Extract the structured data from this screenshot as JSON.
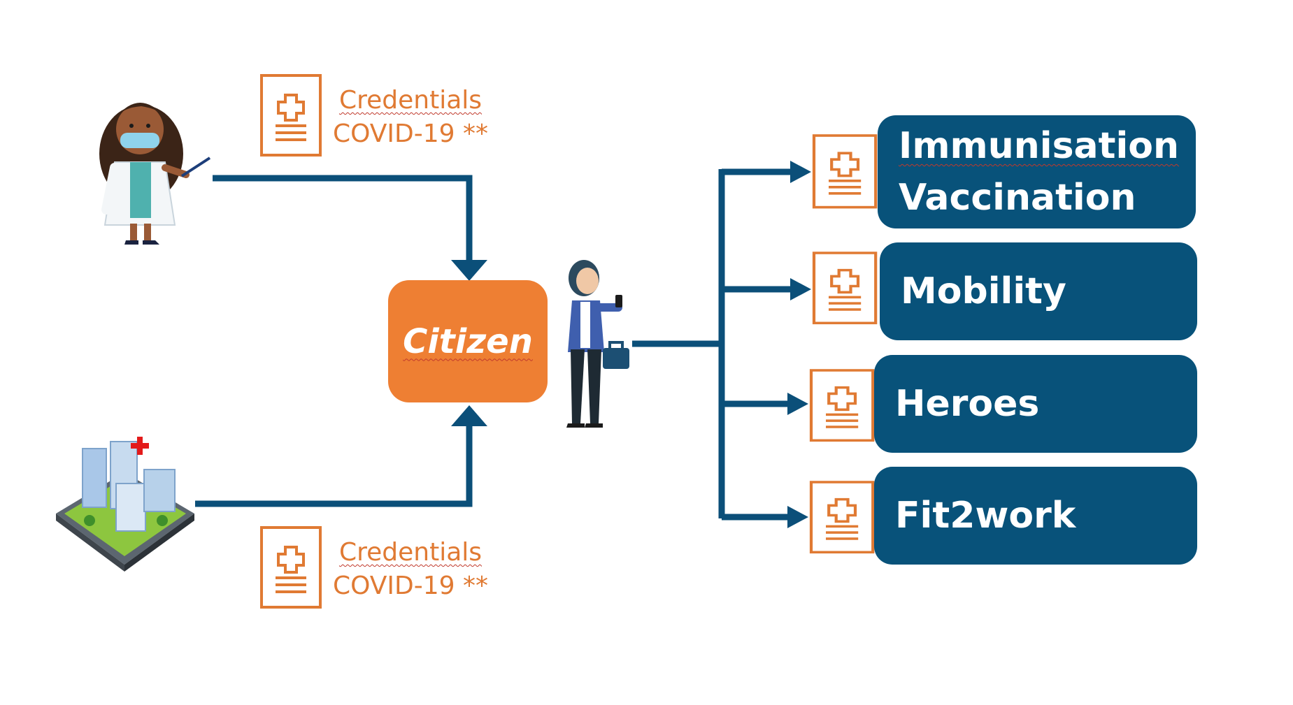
{
  "colors": {
    "accent_orange": "#ee7f33",
    "credential_text": "#e07a33",
    "service_fill": "#08527a",
    "arrow": "#0b4f79"
  },
  "credentials_top": {
    "line1": "Credentials",
    "line2": "COVID-19 **"
  },
  "credentials_bottom": {
    "line1": "Credentials",
    "line2": "COVID-19 **"
  },
  "center_node": {
    "label": "Citizen"
  },
  "services": [
    {
      "line1": "Immunisation",
      "line2": "Vaccination"
    },
    {
      "line1": "Mobility"
    },
    {
      "line1": "Heroes"
    },
    {
      "line1": "Fit2work"
    }
  ],
  "icons": {
    "top_source": "doctor-icon",
    "bottom_source": "hospital-building-icon",
    "holder": "citizen-person-icon",
    "document": "medical-document-icon"
  }
}
